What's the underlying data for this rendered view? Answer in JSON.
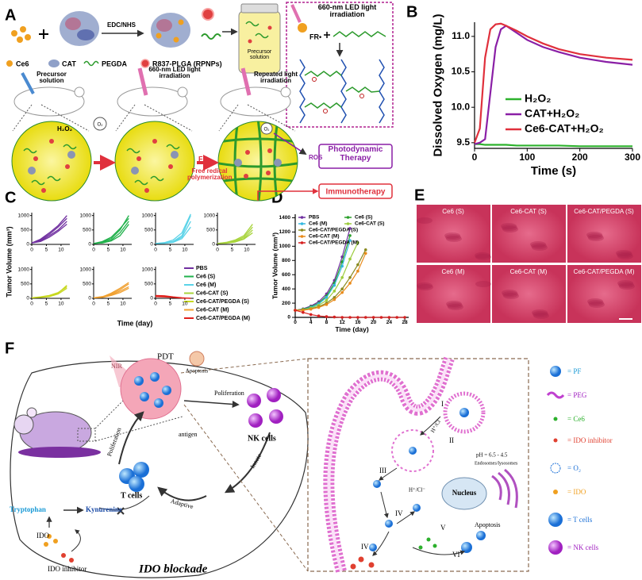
{
  "panel_labels": [
    "A",
    "B",
    "C",
    "D",
    "E",
    "F"
  ],
  "panel_a": {
    "reagents": [
      "Ce6",
      "CAT",
      "PEGDA",
      "R837-PLGA (RPNPs)"
    ],
    "coupling": "EDC/NHS",
    "precursor_label": "Precursor solution",
    "inset_light": "660-nm LED light irradiation",
    "inset_radical": "FR•",
    "steps": [
      "Precursor solution",
      "660-nm LED light irradiation",
      "Repeated light irradiation"
    ],
    "h2o2": "H₂O₂",
    "o2": [
      "O₂",
      "O₂"
    ],
    "radical": "FR•",
    "polymerization": "Free redical polymerization",
    "ros": "ROS",
    "pdt": "Photodynamic Therapy",
    "immuno": "Immunotherapy"
  },
  "chart_data": [
    {
      "type": "line",
      "xlabel": "Time (s)",
      "ylabel": "Dissolved Oxygen (mg/L)",
      "xlim": [
        0,
        300
      ],
      "xticks": [
        0,
        100,
        200,
        300
      ],
      "ylim": [
        9.42,
        11.2
      ],
      "yticks": [
        9.5,
        {
          "value": 10,
          "label": "10.0"
        },
        10.5,
        {
          "value": 11,
          "label": "11.0"
        }
      ],
      "legend": "lower right",
      "x": [
        0,
        10,
        20,
        30,
        40,
        50,
        60,
        80,
        100,
        130,
        160,
        200,
        250,
        300
      ],
      "series": [
        {
          "name": "H₂O₂",
          "color": "#2db22d",
          "values": [
            9.48,
            9.48,
            9.47,
            9.47,
            9.47,
            9.47,
            9.47,
            9.46,
            9.46,
            9.46,
            9.46,
            9.45,
            9.45,
            9.45
          ]
        },
        {
          "name": "CAT+H₂O₂",
          "color": "#8a1fa6",
          "values": [
            9.48,
            9.5,
            9.55,
            10.2,
            10.85,
            11.1,
            11.15,
            11.05,
            10.95,
            10.85,
            10.78,
            10.7,
            10.64,
            10.6
          ]
        },
        {
          "name": "Ce6-CAT+H₂O₂",
          "color": "#e0303c",
          "values": [
            9.5,
            9.7,
            10.7,
            11.1,
            11.17,
            11.18,
            11.15,
            11.08,
            11.0,
            10.9,
            10.82,
            10.75,
            10.7,
            10.67
          ]
        }
      ]
    },
    {
      "type": "small-multiples",
      "xlabel": "Time (day)",
      "ylabel": "Tumor Volume (mm³)",
      "xlim": [
        0,
        13
      ],
      "xticks": [
        0,
        5,
        10
      ],
      "ylim": [
        0,
        1100
      ],
      "yticks": [
        0,
        500,
        1000
      ],
      "legend": "lower right",
      "x": [
        0,
        3,
        6,
        9,
        12
      ],
      "series": [
        {
          "name": "PBS",
          "color": "#7030a0",
          "curves": [
            [
              50,
              150,
              350,
              600,
              900
            ],
            [
              50,
              120,
              300,
              500,
              800
            ],
            [
              50,
              100,
              250,
              450,
              700
            ],
            [
              50,
              180,
              400,
              650,
              1000
            ]
          ]
        },
        {
          "name": "Ce6 (S)",
          "color": "#22b14c",
          "curves": [
            [
              30,
              80,
              200,
              500,
              1000
            ],
            [
              30,
              60,
              150,
              400,
              800
            ],
            [
              30,
              50,
              120,
              300,
              700
            ],
            [
              30,
              100,
              250,
              550,
              900
            ]
          ]
        },
        {
          "name": "Ce6 (M)",
          "color": "#5bd3e8",
          "curves": [
            [
              30,
              50,
              100,
              300,
              1000
            ],
            [
              30,
              40,
              80,
              250,
              800
            ],
            [
              30,
              60,
              150,
              400,
              1050
            ],
            [
              30,
              40,
              70,
              200,
              600
            ]
          ]
        },
        {
          "name": "Ce6-CAT (S)",
          "color": "#a8d43c",
          "curves": [
            [
              30,
              60,
              120,
              250,
              600
            ],
            [
              30,
              50,
              100,
              200,
              500
            ],
            [
              30,
              70,
              150,
              300,
              700
            ],
            [
              30,
              40,
              80,
              180,
              400
            ]
          ]
        },
        {
          "name": "Ce6-CAT/PEGDA (S)",
          "color": "#c7d81f",
          "curves": [
            [
              20,
              40,
              80,
              180,
              450
            ],
            [
              20,
              30,
              60,
              150,
              350
            ],
            [
              20,
              50,
              100,
              200,
              400
            ]
          ]
        },
        {
          "name": "Ce6-CAT (M)",
          "color": "#f0a030",
          "curves": [
            [
              20,
              60,
              150,
              300,
              500
            ],
            [
              20,
              40,
              120,
              250,
              400
            ],
            [
              20,
              50,
              180,
              350,
              550
            ],
            [
              20,
              30,
              100,
              200,
              350
            ]
          ]
        },
        {
          "name": "Ce6-CAT/PEGDA (M)",
          "color": "#e0201c",
          "curves": [
            [
              80,
              60,
              40,
              10,
              0
            ],
            [
              100,
              90,
              50,
              20,
              0
            ],
            [
              60,
              50,
              30,
              10,
              0
            ]
          ]
        }
      ]
    },
    {
      "type": "line",
      "markers": true,
      "xlabel": "Time (day)",
      "ylabel": "Tumor Volume (mm³)",
      "xlim": [
        0,
        29
      ],
      "xticks": [
        0,
        4,
        8,
        12,
        16,
        20,
        24,
        28
      ],
      "ylim": [
        0,
        1450
      ],
      "yticks": [
        0,
        200,
        400,
        600,
        800,
        1000,
        1200,
        1400
      ],
      "legend": "upper left",
      "series": [
        {
          "name": "PBS",
          "color": "#7030a0",
          "x": [
            0,
            2,
            4,
            6,
            8,
            10,
            12,
            14
          ],
          "values": [
            100,
            120,
            160,
            220,
            330,
            520,
            850,
            1250
          ]
        },
        {
          "name": "Ce6 (S)",
          "color": "#2ca02c",
          "x": [
            0,
            2,
            4,
            6,
            8,
            10,
            12,
            14
          ],
          "values": [
            100,
            115,
            150,
            200,
            300,
            480,
            780,
            1150
          ]
        },
        {
          "name": "Ce6 (M)",
          "color": "#35b8e0",
          "x": [
            0,
            2,
            4,
            6,
            8,
            10,
            12,
            14
          ],
          "values": [
            100,
            110,
            140,
            190,
            280,
            450,
            720,
            1080
          ]
        },
        {
          "name": "Ce6-CAT (S)",
          "color": "#9ccc3c",
          "x": [
            0,
            2,
            4,
            6,
            8,
            10,
            12,
            14,
            16
          ],
          "values": [
            100,
            110,
            130,
            170,
            240,
            370,
            560,
            820,
            1050
          ]
        },
        {
          "name": "Ce6-CAT/PEGDA (S)",
          "color": "#8a8a1f",
          "x": [
            0,
            2,
            4,
            6,
            8,
            10,
            12,
            14,
            16,
            18
          ],
          "values": [
            100,
            105,
            120,
            150,
            200,
            280,
            400,
            560,
            740,
            950
          ]
        },
        {
          "name": "Ce6-CAT (M)",
          "color": "#e88a1a",
          "x": [
            0,
            2,
            4,
            6,
            8,
            10,
            12,
            14,
            16,
            18
          ],
          "values": [
            100,
            100,
            115,
            140,
            180,
            250,
            350,
            480,
            650,
            900
          ]
        },
        {
          "name": "Ce6-CAT/PEGDA (M)",
          "color": "#d62020",
          "x": [
            0,
            2,
            4,
            6,
            8,
            10,
            12,
            14,
            16,
            18,
            20,
            22,
            24,
            26,
            28
          ],
          "values": [
            100,
            70,
            40,
            20,
            10,
            5,
            0,
            0,
            0,
            0,
            0,
            0,
            0,
            0,
            0
          ]
        }
      ]
    }
  ],
  "panel_e": {
    "labels": [
      "Ce6 (S)",
      "Ce6-CAT (S)",
      "Ce6-CAT/PEGDA (S)",
      "Ce6 (M)",
      "Ce6-CAT (M)",
      "Ce6-CAT/PEGDA (M)"
    ]
  },
  "panel_f": {
    "pdt": "PDT",
    "nir": "NIR",
    "apoptosis": "Apoptosis",
    "proliferation": [
      "Poliferation",
      "Poliferation"
    ],
    "antigen": "antigen",
    "nk_cells": "NK cells",
    "innate": "Innate",
    "adaptive": "Adaptive",
    "t_cells": "T cells",
    "tryptophan": "Tryptophan",
    "kynurenine": "Kynurenine",
    "ido": "IDO",
    "ido_inhibitor": "IDO inhibitor",
    "blockade": "IDO blockade",
    "steps": [
      "I",
      "II",
      "III",
      "IV",
      "V",
      "VI",
      "IV"
    ],
    "proton": [
      "H⁺/Cl⁻",
      "H⁺/Cl⁻"
    ],
    "ph": "pH = 6.5 - 4.5",
    "endosomes": "Endosomes/lysosomes",
    "nucleus": "Nucleus",
    "apoptosis_cell": "Apoptosis",
    "legend": [
      "= PF",
      "= PEG",
      "= Ce6",
      "= IDO inhibitor",
      "= O₂",
      "= IDO",
      "= T cells",
      "= NK cells"
    ]
  }
}
